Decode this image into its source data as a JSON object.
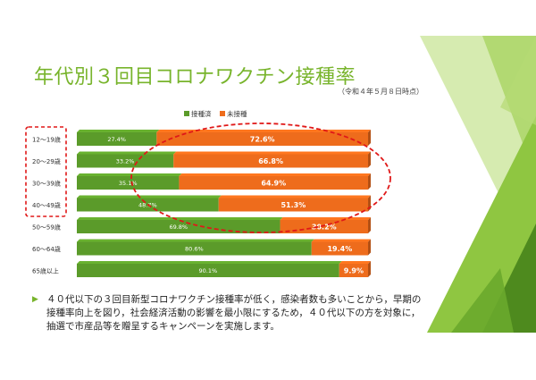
{
  "slide": {
    "title": "年代別３回目コロナワクチン接種率",
    "date_note": "（令和４年５月８日時点）",
    "caption": "４０代以下の３回目新型コロナワクチン接種率が低く，感染者数も多いことから，早期の接種率向上を図り，社会経済活動の影響を最小限にするため，４０代以下の方を対象に，抽選で市産品等を贈呈するキャンペーンを実施します。",
    "bullet_icon": "triangle-bullet-icon"
  },
  "colors": {
    "vaccinated": "#5b9b2a",
    "unvaccinated": "#ee6c1c",
    "title": "#78b42c",
    "highlight": "#e01818",
    "deco_light": "#c5e28e",
    "deco_mid": "#8fc641",
    "deco_dark": "#4e8a1e"
  },
  "chart_data": {
    "type": "bar",
    "orientation": "horizontal",
    "stacked": true,
    "categories": [
      "12～19歳",
      "20～29歳",
      "30～39歳",
      "40～49歳",
      "50～59歳",
      "60～64歳",
      "65歳以上"
    ],
    "series": [
      {
        "name": "接種済",
        "values": [
          27.4,
          33.2,
          35.1,
          48.7,
          69.8,
          80.6,
          90.1
        ],
        "labels": [
          "27.4%",
          "33.2%",
          "35.1%",
          "48.7%",
          "69.8%",
          "80.6%",
          "90.1%"
        ]
      },
      {
        "name": "未接種",
        "values": [
          72.6,
          66.8,
          64.9,
          51.3,
          30.2,
          19.4,
          9.9
        ],
        "labels": [
          "72.6%",
          "66.8%",
          "64.9%",
          "51.3%",
          "30.2%",
          "19.4%",
          "9.9%"
        ]
      }
    ],
    "xlim": [
      0,
      100
    ],
    "legend_position": "top",
    "highlighted_categories": [
      "12～19歳",
      "20～29歳",
      "30～39歳",
      "40～49歳"
    ]
  }
}
